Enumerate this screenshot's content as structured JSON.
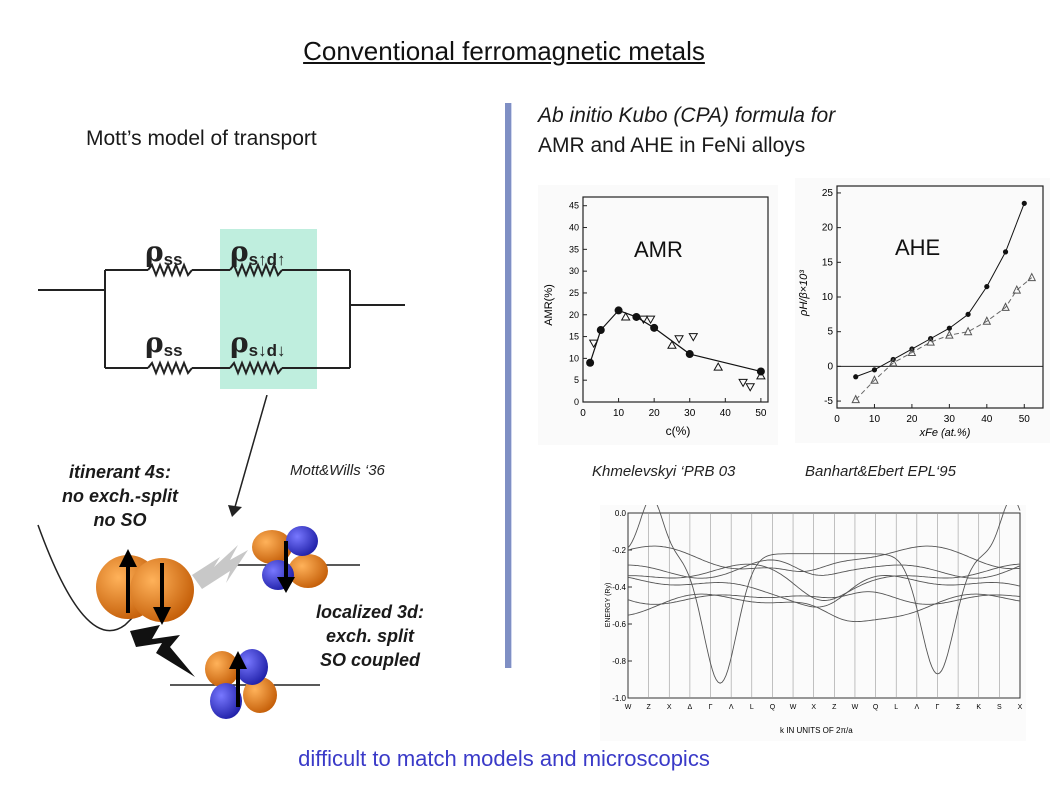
{
  "slide": {
    "title": "Conventional ferromagnetic metals",
    "footer": "difficult to match models and microscopics"
  },
  "mott": {
    "heading": "Mott’s model of transport",
    "resistors": {
      "top_left": {
        "symbol": "ρ",
        "sub": "ss"
      },
      "top_right": {
        "symbol": "ρ",
        "sub": "s↑d↑"
      },
      "bottom_left": {
        "symbol": "ρ",
        "sub": "ss"
      },
      "bottom_right": {
        "symbol": "ρ",
        "sub": "s↓d↓"
      }
    },
    "citation": "Mott&Wills ‘36",
    "itinerant_label": [
      "itinerant 4s:",
      "no exch.-split",
      "no SO"
    ],
    "localized_label": [
      "localized 3d:",
      "exch. split",
      "SO coupled"
    ],
    "highlight_color": "#bfeede",
    "orbital_color_orange": "#e07c1a",
    "orbital_color_blue": "#3c3ccf"
  },
  "abinitio": {
    "line1": "Ab initio Kubo (CPA) formula for",
    "line2": "AMR and AHE in FeNi alloys",
    "divider_color": "#7f8fc4"
  },
  "amr_plot": {
    "label": "AMR",
    "ylabel": "AMR(%)",
    "xlabel": "c(%)",
    "xticks": [
      "0",
      "10",
      "20",
      "30",
      "40",
      "50"
    ],
    "yticks": [
      "0",
      "5",
      "10",
      "15",
      "20",
      "25",
      "30",
      "35",
      "40",
      "45"
    ],
    "citation": "Khmelevskyi ‘PRB 03"
  },
  "ahe_plot": {
    "label": "AHE",
    "ylabel": "ρH/β×10³",
    "xlabel": "xFe (at.%)",
    "xticks": [
      "0",
      "10",
      "20",
      "30",
      "40",
      "50"
    ],
    "yticks": [
      "-5",
      "0",
      "5",
      "10",
      "15",
      "20",
      "25"
    ],
    "citation": "Banhart&Ebert EPL‘95"
  },
  "band_plot": {
    "ylabel": "ENERGY (Ry)",
    "yticks": [
      "0.0",
      "-0.2",
      "-0.4",
      "-0.6",
      "-0.8",
      "-1.0"
    ],
    "kpoints": [
      "W",
      "Z",
      "X",
      "Δ",
      "Γ",
      "Λ",
      "L",
      "Q",
      "W",
      "X",
      "Z",
      "W",
      "Q",
      "L",
      "Λ",
      "Γ",
      "Σ",
      "K",
      "S",
      "X"
    ],
    "xlabel": "k IN UNITS OF 2π/a"
  },
  "chart_data": [
    {
      "type": "scatter",
      "title": "AMR",
      "xlabel": "c(%)",
      "ylabel": "AMR(%)",
      "xlim": [
        0,
        52
      ],
      "ylim": [
        0,
        47
      ],
      "series": [
        {
          "values_x": [
            2,
            5,
            10,
            15,
            20,
            30,
            50
          ],
          "values_y": [
            9,
            16.5,
            21,
            19.5,
            17,
            11,
            7
          ]
        },
        {
          "values_x": [
            3,
            12,
            17,
            19,
            25,
            27,
            31,
            38,
            45,
            47,
            50
          ],
          "values_y": [
            13.5,
            19.5,
            19,
            19,
            13,
            14.5,
            15,
            8,
            4.5,
            3.5,
            6
          ]
        }
      ]
    },
    {
      "type": "scatter",
      "title": "AHE",
      "xlabel": "xFe (at.%)",
      "ylabel": "ρH/β×10³",
      "xlim": [
        0,
        55
      ],
      "ylim": [
        -6,
        26
      ],
      "series": [
        {
          "values_x": [
            5,
            10,
            15,
            20,
            25,
            30,
            35,
            40,
            45,
            50
          ],
          "values_y": [
            -1.5,
            -0.5,
            1,
            2.5,
            4,
            5.5,
            7.5,
            11.5,
            16.5,
            23.5
          ]
        },
        {
          "values_x": [
            5,
            10,
            15,
            20,
            25,
            30,
            35,
            40,
            45,
            48,
            52
          ],
          "values_y": [
            -4.8,
            -2,
            0.5,
            2,
            3.5,
            4.5,
            5,
            6.5,
            8.5,
            11,
            12.8
          ]
        }
      ]
    }
  ]
}
